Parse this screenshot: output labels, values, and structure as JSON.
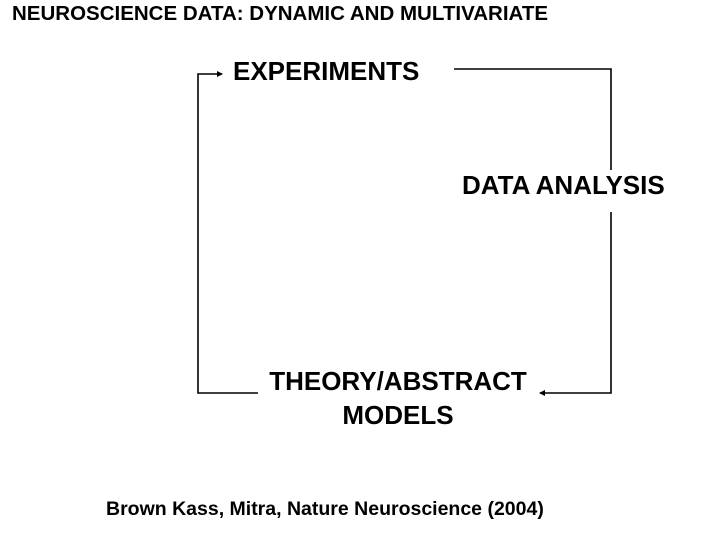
{
  "header": {
    "title": "NEUROSCIENCE DATA: DYNAMIC AND MULTIVARIATE"
  },
  "diagram": {
    "nodes": {
      "experiments": "EXPERIMENTS",
      "data_analysis": "DATA ANALYSIS",
      "theory_line1": "THEORY/ABSTRACT",
      "theory_line2": "MODELS"
    },
    "edges": [
      {
        "from": "experiments",
        "to": "data_analysis"
      },
      {
        "from": "data_analysis",
        "to": "theory"
      },
      {
        "from": "theory",
        "to": "experiments"
      }
    ]
  },
  "footer": {
    "citation": "Brown Kass, Mitra, Nature Neuroscience (2004)"
  },
  "colors": {
    "text": "#000000",
    "lines": "#000000",
    "background": "#ffffff"
  }
}
